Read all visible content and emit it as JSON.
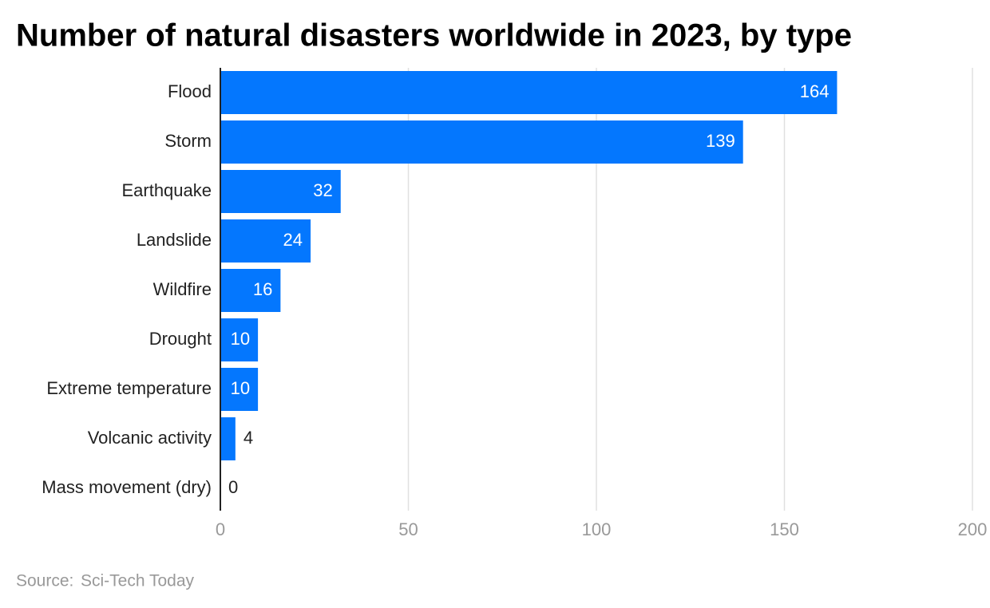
{
  "chart_data": {
    "type": "bar",
    "orientation": "horizontal",
    "title": "Number of natural disasters worldwide in 2023, by type",
    "categories": [
      "Flood",
      "Storm",
      "Earthquake",
      "Landslide",
      "Wildfire",
      "Drought",
      "Extreme temperature",
      "Volcanic activity",
      "Mass movement (dry)"
    ],
    "values": [
      164,
      139,
      32,
      24,
      16,
      10,
      10,
      4,
      0
    ],
    "color": "#0477fe",
    "xlim": [
      0,
      200
    ],
    "xticks": [
      0,
      50,
      100,
      150,
      200
    ],
    "grid": true,
    "source_label": "Source:",
    "source": "Sci-Tech Today"
  }
}
